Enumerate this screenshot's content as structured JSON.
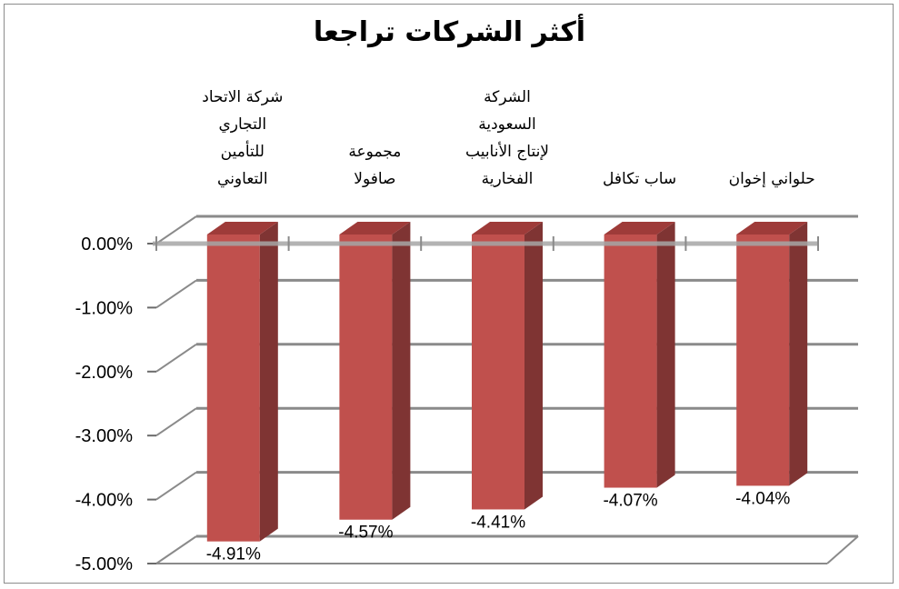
{
  "chart": {
    "title": "أكثر الشركات تراجعا",
    "bar_color": "#c0504d",
    "bar_side_color": "#7f3433",
    "bar_top_color": "#9e3b39"
  },
  "chart_data": {
    "type": "bar",
    "title": "أكثر الشركات تراجعا",
    "categories": [
      "شركة الاتحاد\nالتجاري\nللتأمين\nالتعاوني",
      "مجموعة\nصافولا",
      "الشركة\nالسعودية\nلإنتاج الأنابيب\nالفخارية",
      "ساب تكافل",
      "حلواني إخوان"
    ],
    "values": [
      -4.91,
      -4.57,
      -4.41,
      -4.07,
      -4.04
    ],
    "data_labels": [
      "-4.91%",
      "-4.57%",
      "-4.41%",
      "-4.07%",
      "-4.04%"
    ],
    "xlabel": "",
    "ylabel": "",
    "ylim": [
      -5,
      0
    ],
    "y_ticks": [
      "0.00%",
      "-1.00%",
      "-2.00%",
      "-3.00%",
      "-4.00%",
      "-5.00%"
    ],
    "grid": true,
    "legend": "none",
    "style": "3d-column"
  }
}
